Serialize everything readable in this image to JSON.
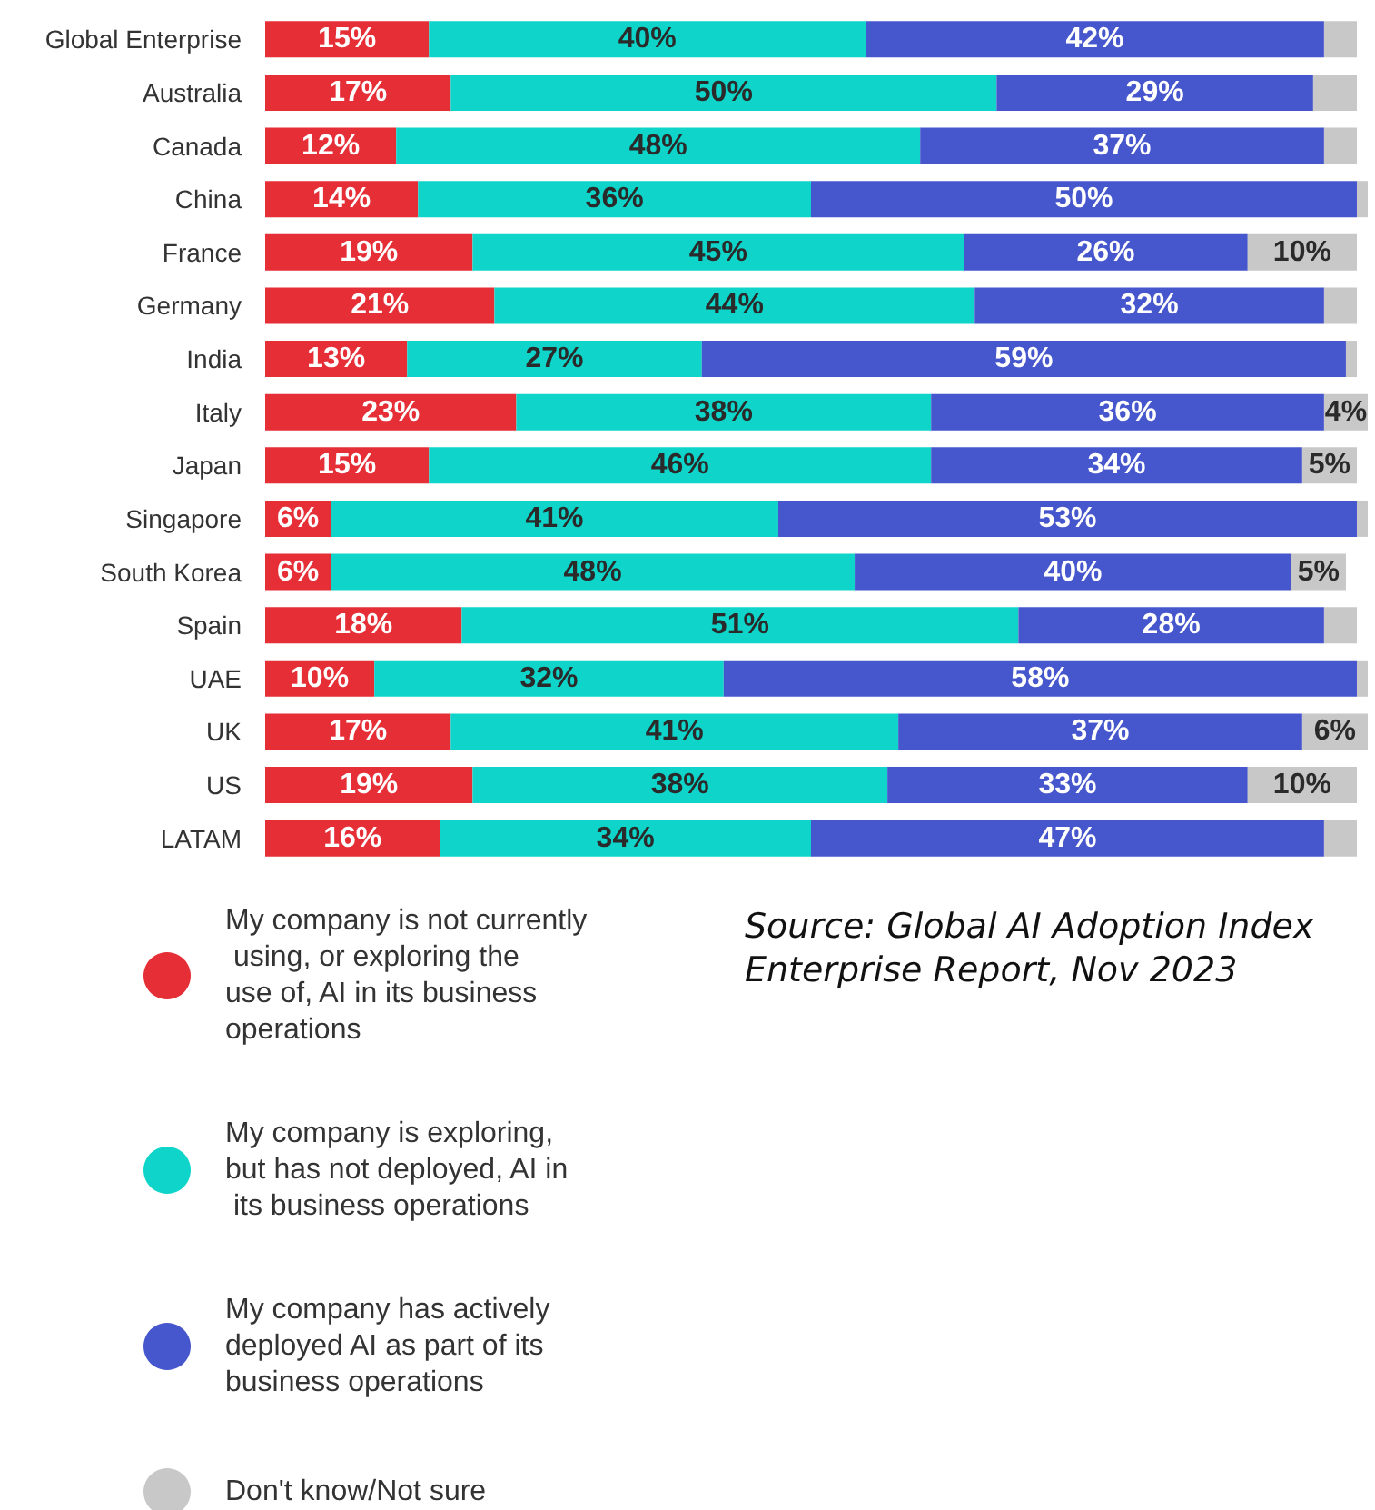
{
  "chart_data": {
    "type": "bar",
    "orientation": "horizontal",
    "stacked": true,
    "categories": [
      "Global Enterprise",
      "Australia",
      "Canada",
      "China",
      "France",
      "Germany",
      "India",
      "Italy",
      "Japan",
      "Singapore",
      "South Korea",
      "Spain",
      "UAE",
      "UK",
      "US",
      "LATAM"
    ],
    "xlim": [
      0,
      101
    ],
    "tick_labels": "y",
    "legend": "bottom left",
    "series": [
      {
        "name": "My company is not currently using, or exploring the use of, AI in its business operations",
        "color": "#e62e37",
        "values": [
          15,
          17,
          12,
          14,
          19,
          21,
          13,
          23,
          15,
          6,
          6,
          18,
          10,
          17,
          19,
          16
        ],
        "value_labels": [
          "15%",
          "17%",
          "12%",
          "14%",
          "19%",
          "21%",
          "13%",
          "23%",
          "15%",
          "6%",
          "6%",
          "18%",
          "10%",
          "17%",
          "19%",
          "16%"
        ]
      },
      {
        "name": "My company is exploring, but has not deployed, AI in its business operations",
        "color": "#0fd4c9",
        "values": [
          40,
          50,
          48,
          36,
          45,
          44,
          27,
          38,
          46,
          41,
          48,
          51,
          32,
          41,
          38,
          34
        ],
        "value_labels": [
          "40%",
          "50%",
          "48%",
          "36%",
          "45%",
          "44%",
          "27%",
          "38%",
          "46%",
          "41%",
          "48%",
          "51%",
          "32%",
          "41%",
          "38%",
          "34%"
        ]
      },
      {
        "name": "My company has actively deployed AI as part of its business operations",
        "color": "#4656cc",
        "values": [
          42,
          29,
          37,
          50,
          26,
          32,
          59,
          36,
          34,
          53,
          40,
          28,
          58,
          37,
          33,
          47
        ],
        "value_labels": [
          "42%",
          "29%",
          "37%",
          "50%",
          "26%",
          "32%",
          "59%",
          "36%",
          "34%",
          "53%",
          "40%",
          "28%",
          "58%",
          "37%",
          "33%",
          "47%"
        ]
      },
      {
        "name": "Don't know/Not sure",
        "color": "#c8c8c8",
        "values": [
          3,
          4,
          3,
          1,
          10,
          3,
          1,
          4,
          5,
          1,
          5,
          3,
          1,
          6,
          10,
          3
        ],
        "value_labels": [
          null,
          null,
          null,
          null,
          "10%",
          null,
          null,
          "4%",
          "5%",
          null,
          "5%",
          null,
          null,
          "6%",
          "10%",
          null
        ]
      }
    ],
    "annotations": [
      "Source: Global AI Adoption Index Enterprise Report, Nov 2023"
    ]
  }
}
